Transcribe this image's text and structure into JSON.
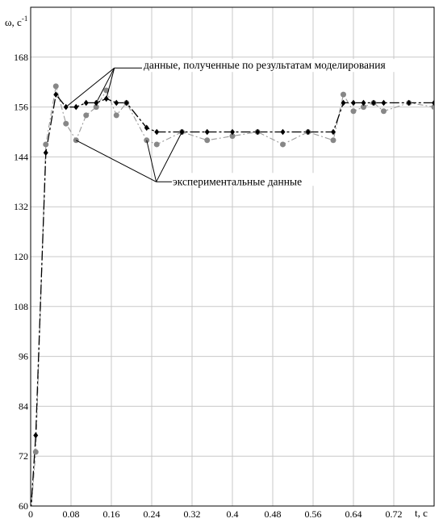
{
  "chart_data": {
    "type": "line",
    "title": "",
    "xlabel": "t, c",
    "ylabel_main": "ω, c",
    "ylabel_sup": "-1",
    "xlim": [
      0,
      0.8
    ],
    "ylim": [
      60,
      180
    ],
    "grid": true,
    "xticks": [
      0,
      0.08,
      0.16,
      0.24,
      0.32,
      0.4,
      0.48,
      0.56,
      0.64,
      0.72
    ],
    "xtick_labels": [
      "0",
      "0.08",
      "0.16",
      "0.24",
      "0.32",
      "0.4",
      "0.48",
      "0.56",
      "0.64",
      "0.72"
    ],
    "yticks": [
      60,
      72,
      84,
      96,
      108,
      120,
      132,
      144,
      156,
      168
    ],
    "ytick_labels": [
      "60",
      "72",
      "84",
      "96",
      "108",
      "120",
      "132",
      "144",
      "156",
      "168"
    ],
    "series": [
      {
        "name": "данные, полученные по результатам моделирования",
        "color": "#000000",
        "marker": "diamond",
        "x": [
          0.0,
          0.01,
          0.03,
          0.05,
          0.07,
          0.09,
          0.11,
          0.13,
          0.15,
          0.17,
          0.19,
          0.23,
          0.25,
          0.3,
          0.35,
          0.4,
          0.45,
          0.5,
          0.55,
          0.6,
          0.62,
          0.64,
          0.66,
          0.68,
          0.7,
          0.75,
          0.8
        ],
        "y": [
          58,
          77,
          145,
          159,
          156,
          156,
          157,
          157,
          158,
          157,
          157,
          151,
          150,
          150,
          150,
          150,
          150,
          150,
          150,
          150,
          157,
          157,
          157,
          157,
          157,
          157,
          157
        ]
      },
      {
        "name": "экспериментальные данные",
        "color": "#888888",
        "marker": "circle",
        "x": [
          0.0,
          0.01,
          0.03,
          0.05,
          0.07,
          0.09,
          0.11,
          0.13,
          0.15,
          0.17,
          0.19,
          0.23,
          0.25,
          0.3,
          0.35,
          0.4,
          0.45,
          0.5,
          0.55,
          0.6,
          0.62,
          0.64,
          0.66,
          0.68,
          0.7,
          0.75,
          0.8
        ],
        "y": [
          58,
          73,
          147,
          161,
          152,
          148,
          154,
          156,
          160,
          154,
          157,
          148,
          147,
          150,
          148,
          149,
          150,
          147,
          150,
          148,
          159,
          155,
          156,
          157,
          155,
          157,
          156
        ]
      }
    ],
    "annotations": [
      {
        "text": "данные, полученные по результатам моделирования",
        "anchor_x": 0.166,
        "anchor_y": 165.4,
        "targets": [
          [
            0.07,
            156
          ],
          [
            0.13,
            157
          ],
          [
            0.15,
            158
          ]
        ]
      },
      {
        "text": "экспериментальные данные",
        "anchor_x": 0.249,
        "anchor_y": 138.0,
        "targets": [
          [
            0.09,
            148
          ],
          [
            0.23,
            148
          ],
          [
            0.3,
            150
          ]
        ]
      }
    ]
  }
}
